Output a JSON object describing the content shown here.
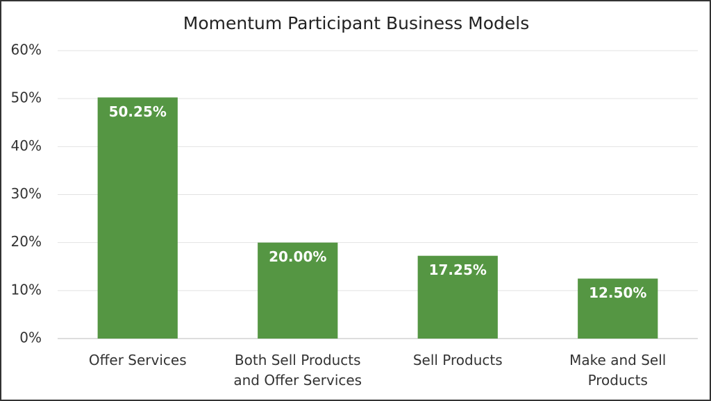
{
  "chart_data": {
    "type": "bar",
    "title": "Momentum Participant Business Models",
    "categories": [
      "Offer Services",
      "Both Sell Products and Offer Services",
      "Sell Products",
      "Make and Sell Products"
    ],
    "values": [
      50.25,
      20.0,
      17.25,
      12.5
    ],
    "value_labels": [
      "50.25%",
      "20.00%",
      "17.25%",
      "12.50%"
    ],
    "color": "#559643",
    "ylim": [
      0,
      60
    ],
    "yticks": [
      {
        "value": 0,
        "label": "0%"
      },
      {
        "value": 10,
        "label": "10%"
      },
      {
        "value": 20,
        "label": "20%"
      },
      {
        "value": 30,
        "label": "30%"
      },
      {
        "value": 40,
        "label": "40%"
      },
      {
        "value": 50,
        "label": "50%"
      },
      {
        "value": 60,
        "label": "60%"
      }
    ],
    "grid": true
  }
}
